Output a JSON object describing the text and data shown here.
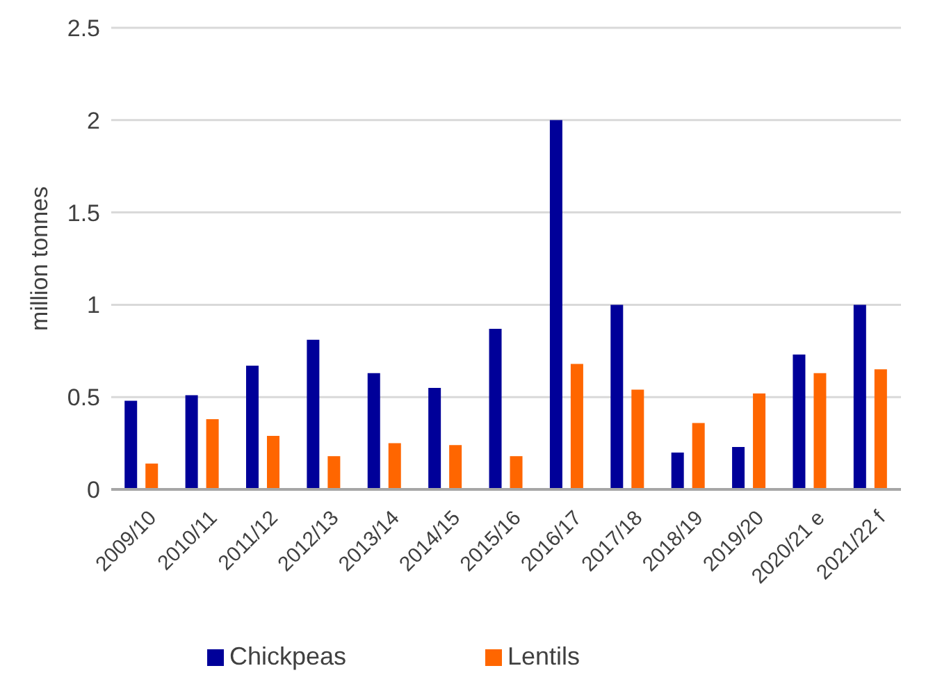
{
  "chart_data": {
    "type": "bar",
    "ylabel": "million tonnes",
    "categories": [
      "2009/10",
      "2010/11",
      "2011/12",
      "2012/13",
      "2013/14",
      "2014/15",
      "2015/16",
      "2016/17",
      "2017/18",
      "2018/19",
      "2019/20",
      "2020/21 e",
      "2021/22 f"
    ],
    "series": [
      {
        "name": "Chickpeas",
        "color": "#000099",
        "values": [
          0.48,
          0.51,
          0.67,
          0.81,
          0.63,
          0.55,
          0.87,
          2.0,
          1.0,
          0.2,
          0.23,
          0.73,
          1.0
        ]
      },
      {
        "name": "Lentils",
        "color": "#ff6600",
        "values": [
          0.14,
          0.38,
          0.29,
          0.18,
          0.25,
          0.24,
          0.18,
          0.68,
          0.54,
          0.36,
          0.52,
          0.63,
          0.65
        ]
      }
    ],
    "ylim": [
      0,
      2.5
    ],
    "yticks": [
      0,
      0.5,
      1,
      1.5,
      2,
      2.5
    ],
    "grid": "y",
    "legend": "bottom"
  }
}
